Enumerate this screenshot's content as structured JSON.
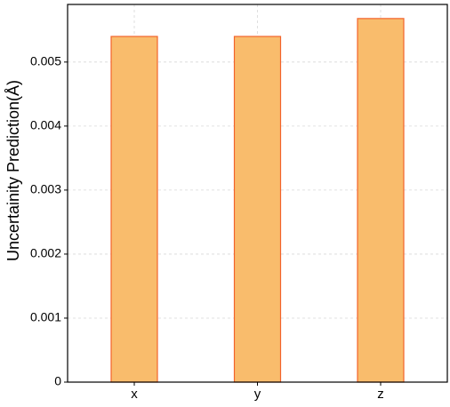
{
  "chart_data": {
    "type": "bar",
    "ylabel": "Uncertainity Prediction(Å)",
    "categories": [
      "x",
      "y",
      "z"
    ],
    "values": [
      0.0054,
      0.0054,
      0.00568
    ],
    "color": "#f9bc6c",
    "edgecolor": "#f2632b",
    "ylim": [
      0,
      0.0059
    ],
    "yticks": [
      0,
      0.001,
      0.002,
      0.003,
      0.004,
      0.005
    ],
    "grid": true
  }
}
